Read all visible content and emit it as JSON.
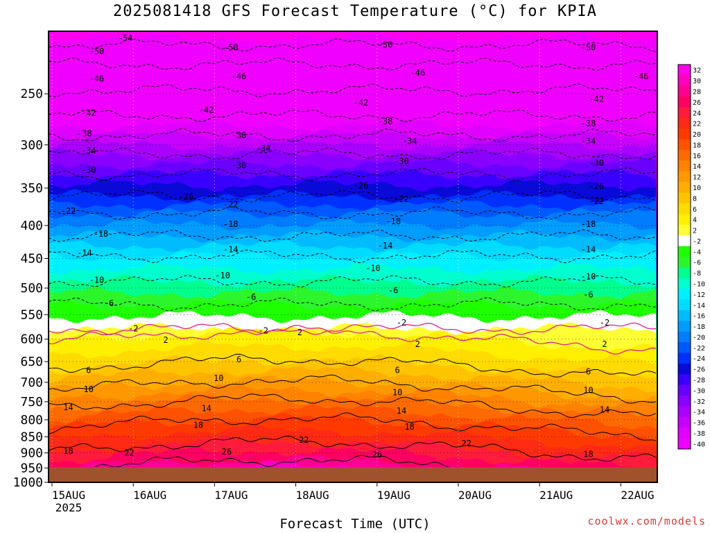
{
  "chart_data": {
    "type": "heatmap",
    "title": "2025081418 GFS Forecast Temperature (°C) for KPIA",
    "xlabel": "Forecast Time (UTC)",
    "ylabel": "",
    "x_ticks": [
      "15AUG",
      "16AUG",
      "17AUG",
      "18AUG",
      "19AUG",
      "20AUG",
      "21AUG",
      "22AUG"
    ],
    "x_tick_year": "2025",
    "y_ticks": [
      250,
      300,
      350,
      400,
      450,
      500,
      550,
      600,
      650,
      700,
      750,
      800,
      850,
      900,
      950,
      1000
    ],
    "y_scale": "log",
    "ylim": [
      1000,
      200
    ],
    "colorbar_labels": [
      "32",
      "30",
      "28",
      "26",
      "24",
      "22",
      "20",
      "18",
      "16",
      "14",
      "12",
      "10",
      "8",
      "6",
      "4",
      "2",
      "-2",
      "-4",
      "-6",
      "-8",
      "-10",
      "-12",
      "-14",
      "-16",
      "-18",
      "-20",
      "-22",
      "-24",
      "-26",
      "-28",
      "-30",
      "-32",
      "-34",
      "-36",
      "-38",
      "-40"
    ],
    "colorbar_colors": [
      "#ff00e6",
      "#ff00c0",
      "#ff0090",
      "#ff0062",
      "#ff1b3c",
      "#ff2a14",
      "#ff3a00",
      "#ff5200",
      "#ff6a00",
      "#ff8200",
      "#ff9800",
      "#ffae00",
      "#ffc400",
      "#ffdb00",
      "#fff000",
      "#fffd33",
      "#ffffff",
      "#1eff00",
      "#2cf52c",
      "#00ff8c",
      "#00ffce",
      "#00f0ff",
      "#00dcff",
      "#00bcff",
      "#009cff",
      "#007cff",
      "#0058ff",
      "#0030ff",
      "#0a0ad8",
      "#3a00ff",
      "#6a00ff",
      "#8a00ff",
      "#aa00ff",
      "#c800ff",
      "#e000ff",
      "#f000ff"
    ],
    "contour_labels": [
      {
        "value": -54,
        "x_day": 0.9,
        "p": 205
      },
      {
        "value": -50,
        "x_day": 0.55,
        "p": 215
      },
      {
        "value": -50,
        "x_day": 2.2,
        "p": 212
      },
      {
        "value": -50,
        "x_day": 4.1,
        "p": 210
      },
      {
        "value": -50,
        "x_day": 6.6,
        "p": 212
      },
      {
        "value": -46,
        "x_day": 0.55,
        "p": 237
      },
      {
        "value": -46,
        "x_day": 2.3,
        "p": 235
      },
      {
        "value": -46,
        "x_day": 4.5,
        "p": 232
      },
      {
        "value": -46,
        "x_day": 7.25,
        "p": 235
      },
      {
        "value": -42,
        "x_day": 0.45,
        "p": 268
      },
      {
        "value": -42,
        "x_day": 1.9,
        "p": 265
      },
      {
        "value": -42,
        "x_day": 3.8,
        "p": 258
      },
      {
        "value": -42,
        "x_day": 6.7,
        "p": 255
      },
      {
        "value": -38,
        "x_day": 0.4,
        "p": 288
      },
      {
        "value": -38,
        "x_day": 2.3,
        "p": 290
      },
      {
        "value": -38,
        "x_day": 4.1,
        "p": 276
      },
      {
        "value": -38,
        "x_day": 6.6,
        "p": 278
      },
      {
        "value": -34,
        "x_day": 0.45,
        "p": 306
      },
      {
        "value": -34,
        "x_day": 2.6,
        "p": 304
      },
      {
        "value": -34,
        "x_day": 4.4,
        "p": 296
      },
      {
        "value": -34,
        "x_day": 6.6,
        "p": 296
      },
      {
        "value": -30,
        "x_day": 0.45,
        "p": 328
      },
      {
        "value": -30,
        "x_day": 2.3,
        "p": 323
      },
      {
        "value": -30,
        "x_day": 4.3,
        "p": 318
      },
      {
        "value": -30,
        "x_day": 6.7,
        "p": 320
      },
      {
        "value": -26,
        "x_day": 1.65,
        "p": 361
      },
      {
        "value": -26,
        "x_day": 3.8,
        "p": 347
      },
      {
        "value": -26,
        "x_day": 6.7,
        "p": 348
      },
      {
        "value": -22,
        "x_day": 0.2,
        "p": 380
      },
      {
        "value": -22,
        "x_day": 2.2,
        "p": 371
      },
      {
        "value": -22,
        "x_day": 4.3,
        "p": 364
      },
      {
        "value": -22,
        "x_day": 6.7,
        "p": 367
      },
      {
        "value": -18,
        "x_day": 0.6,
        "p": 412
      },
      {
        "value": -18,
        "x_day": 2.2,
        "p": 398
      },
      {
        "value": -18,
        "x_day": 4.2,
        "p": 394
      },
      {
        "value": -18,
        "x_day": 6.6,
        "p": 398
      },
      {
        "value": -14,
        "x_day": 0.4,
        "p": 441
      },
      {
        "value": -14,
        "x_day": 2.2,
        "p": 436
      },
      {
        "value": -14,
        "x_day": 4.1,
        "p": 430
      },
      {
        "value": -14,
        "x_day": 6.6,
        "p": 436
      },
      {
        "value": -10,
        "x_day": 0.55,
        "p": 486
      },
      {
        "value": -10,
        "x_day": 2.1,
        "p": 478
      },
      {
        "value": -10,
        "x_day": 3.95,
        "p": 466
      },
      {
        "value": -10,
        "x_day": 6.6,
        "p": 480
      },
      {
        "value": -6,
        "x_day": 0.7,
        "p": 528
      },
      {
        "value": -6,
        "x_day": 2.45,
        "p": 516
      },
      {
        "value": -6,
        "x_day": 4.2,
        "p": 504
      },
      {
        "value": -6,
        "x_day": 6.6,
        "p": 512
      },
      {
        "value": -2,
        "x_day": 1.0,
        "p": 578
      },
      {
        "value": -2,
        "x_day": 2.6,
        "p": 582
      },
      {
        "value": -2,
        "x_day": 4.3,
        "p": 566
      },
      {
        "value": -2,
        "x_day": 6.8,
        "p": 566
      },
      {
        "value": 2,
        "x_day": 1.4,
        "p": 602
      },
      {
        "value": 2,
        "x_day": 3.05,
        "p": 586
      },
      {
        "value": 2,
        "x_day": 4.5,
        "p": 611
      },
      {
        "value": 2,
        "x_day": 6.8,
        "p": 611
      },
      {
        "value": 6,
        "x_day": 0.45,
        "p": 670
      },
      {
        "value": 6,
        "x_day": 2.3,
        "p": 645
      },
      {
        "value": 6,
        "x_day": 4.25,
        "p": 670
      },
      {
        "value": 6,
        "x_day": 6.6,
        "p": 674
      },
      {
        "value": 10,
        "x_day": 0.45,
        "p": 718
      },
      {
        "value": 10,
        "x_day": 2.05,
        "p": 690
      },
      {
        "value": 10,
        "x_day": 4.25,
        "p": 726
      },
      {
        "value": 10,
        "x_day": 6.6,
        "p": 720
      },
      {
        "value": 14,
        "x_day": 0.2,
        "p": 765
      },
      {
        "value": 14,
        "x_day": 1.9,
        "p": 768
      },
      {
        "value": 14,
        "x_day": 4.3,
        "p": 775
      },
      {
        "value": 14,
        "x_day": 6.8,
        "p": 772
      },
      {
        "value": 18,
        "x_day": 1.8,
        "p": 815
      },
      {
        "value": 18,
        "x_day": 4.4,
        "p": 820
      },
      {
        "value": 18,
        "x_day": 6.6,
        "p": 905
      },
      {
        "value": 18,
        "x_day": 0.2,
        "p": 895
      },
      {
        "value": 22,
        "x_day": 0.95,
        "p": 900
      },
      {
        "value": 22,
        "x_day": 3.1,
        "p": 860
      },
      {
        "value": 22,
        "x_day": 5.1,
        "p": 870
      },
      {
        "value": 26,
        "x_day": 2.15,
        "p": 897
      },
      {
        "value": 26,
        "x_day": 4.0,
        "p": 906
      }
    ]
  },
  "labels": {
    "title": "2025081418 GFS Forecast Temperature (°C) for KPIA",
    "xlabel": "Forecast Time (UTC)",
    "credit": "coolwx.com/models"
  }
}
